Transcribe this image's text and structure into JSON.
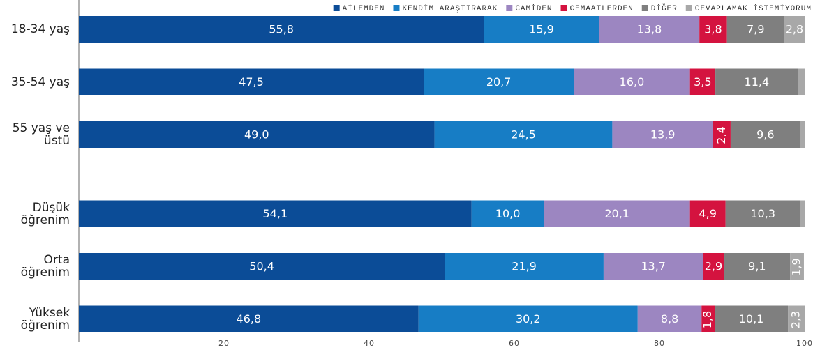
{
  "chart_data": {
    "type": "stacked-bar-horizontal",
    "categories": [
      "18-34 yaş",
      "35-54 yaş",
      "55 yaş ve üstü",
      "Düşük öğrenim",
      "Orta öğrenim",
      "Yüksek öğrenim"
    ],
    "series": [
      {
        "name": "AİLEMDEN",
        "color": "#0b4c97",
        "values": [
          55.8,
          47.5,
          49.0,
          54.1,
          50.4,
          46.8
        ],
        "value_labels": [
          "55,8",
          "47,5",
          "49,0",
          "54,1",
          "50,4",
          "46,8"
        ]
      },
      {
        "name": "KENDİM ARAŞTIRARAK",
        "color": "#177dc5",
        "values": [
          15.9,
          20.7,
          24.5,
          10.0,
          21.9,
          30.2
        ],
        "value_labels": [
          "15,9",
          "20,7",
          "24,5",
          "10,0",
          "21,9",
          "30,2"
        ]
      },
      {
        "name": "CAMİDEN",
        "color": "#9c86c1",
        "values": [
          13.8,
          16.0,
          13.9,
          20.1,
          13.7,
          8.8
        ],
        "value_labels": [
          "13,8",
          "16,0",
          "13,9",
          "20,1",
          "13,7",
          "8,8"
        ]
      },
      {
        "name": "CEMAATLERDEN",
        "color": "#d4133f",
        "values": [
          3.8,
          3.5,
          2.4,
          4.9,
          2.9,
          1.8
        ],
        "value_labels": [
          "3,8",
          "3,5",
          "2,4",
          "4,9",
          "2,9",
          "1,8"
        ]
      },
      {
        "name": "DİĞER",
        "color": "#7f7f7f",
        "values": [
          7.9,
          11.4,
          9.6,
          10.3,
          9.1,
          10.1
        ],
        "value_labels": [
          "7,9",
          "11,4",
          "9,6",
          "10,3",
          "9,1",
          "10,1"
        ]
      },
      {
        "name": "CEVAPLAMAK İSTEMİYORUM",
        "color": "#a8a8a8",
        "values": [
          2.8,
          0.9,
          0.6,
          0.6,
          1.9,
          2.3
        ],
        "value_labels": [
          "2,8",
          null,
          null,
          null,
          "1,9",
          "2,3"
        ]
      }
    ],
    "xlim": [
      0,
      100
    ],
    "xticks": [
      20,
      40,
      60,
      80,
      100
    ]
  }
}
